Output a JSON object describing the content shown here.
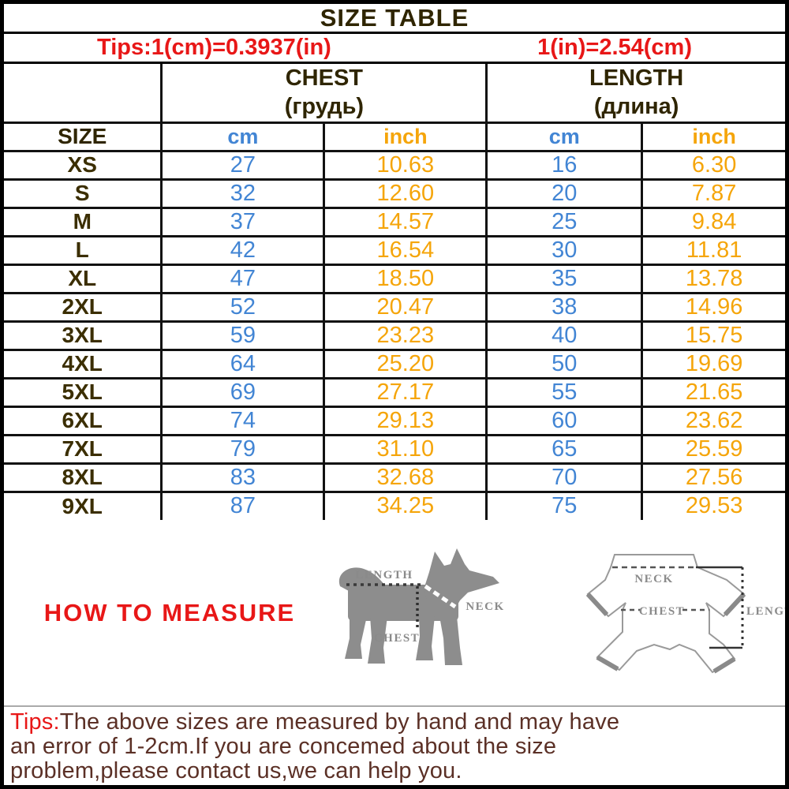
{
  "title": "SIZE TABLE",
  "conversion": {
    "left": "Tips:1(cm)=0.3937(in)",
    "right": "1(in)=2.54(cm)"
  },
  "table": {
    "size_header": "SIZE",
    "group_headers": [
      {
        "en": "CHEST",
        "ru": "(грудь)"
      },
      {
        "en": "LENGTH",
        "ru": "(длина)"
      }
    ],
    "unit_headers": [
      "cm",
      "inch",
      "cm",
      "inch"
    ],
    "rows": [
      {
        "size": "XS",
        "chest_cm": "27",
        "chest_inch": "10.63",
        "length_cm": "16",
        "length_inch": "6.30"
      },
      {
        "size": "S",
        "chest_cm": "32",
        "chest_inch": "12.60",
        "length_cm": "20",
        "length_inch": "7.87"
      },
      {
        "size": "M",
        "chest_cm": "37",
        "chest_inch": "14.57",
        "length_cm": "25",
        "length_inch": "9.84"
      },
      {
        "size": "L",
        "chest_cm": "42",
        "chest_inch": "16.54",
        "length_cm": "30",
        "length_inch": "11.81"
      },
      {
        "size": "XL",
        "chest_cm": "47",
        "chest_inch": "18.50",
        "length_cm": "35",
        "length_inch": "13.78"
      },
      {
        "size": "2XL",
        "chest_cm": "52",
        "chest_inch": "20.47",
        "length_cm": "38",
        "length_inch": "14.96"
      },
      {
        "size": "3XL",
        "chest_cm": "59",
        "chest_inch": "23.23",
        "length_cm": "40",
        "length_inch": "15.75"
      },
      {
        "size": "4XL",
        "chest_cm": "64",
        "chest_inch": "25.20",
        "length_cm": "50",
        "length_inch": "19.69"
      },
      {
        "size": "5XL",
        "chest_cm": "69",
        "chest_inch": "27.17",
        "length_cm": "55",
        "length_inch": "21.65"
      },
      {
        "size": "6XL",
        "chest_cm": "74",
        "chest_inch": "29.13",
        "length_cm": "60",
        "length_inch": "23.62"
      },
      {
        "size": "7XL",
        "chest_cm": "79",
        "chest_inch": "31.10",
        "length_cm": "65",
        "length_inch": "25.59"
      },
      {
        "size": "8XL",
        "chest_cm": "83",
        "chest_inch": "32.68",
        "length_cm": "70",
        "length_inch": "27.56"
      },
      {
        "size": "9XL",
        "chest_cm": "87",
        "chest_inch": "34.25",
        "length_cm": "75",
        "length_inch": "29.53"
      }
    ]
  },
  "measure": {
    "title": "HOW TO MEASURE",
    "dog_labels": {
      "length": "LENGTH",
      "neck": "NECK",
      "chest": "CHEST"
    },
    "garment_labels": {
      "neck": "NECK",
      "chest": "CHEST",
      "length": "LENGTH"
    }
  },
  "bottom_tips": {
    "prefix": "Tips:",
    "line1": "The above sizes are measured by hand and may have",
    "line2": "an error of 1-2cm.If you are concemed about the size",
    "line3": "problem,please contact us,we can help you."
  },
  "colors": {
    "cm_blue": "#4285d4",
    "inch_orange": "#f5a50a",
    "accent_red": "#e81717",
    "header_dark": "#2f2500",
    "tips_brown": "#5b3026",
    "diagram_gray": "#8d8d8d"
  }
}
